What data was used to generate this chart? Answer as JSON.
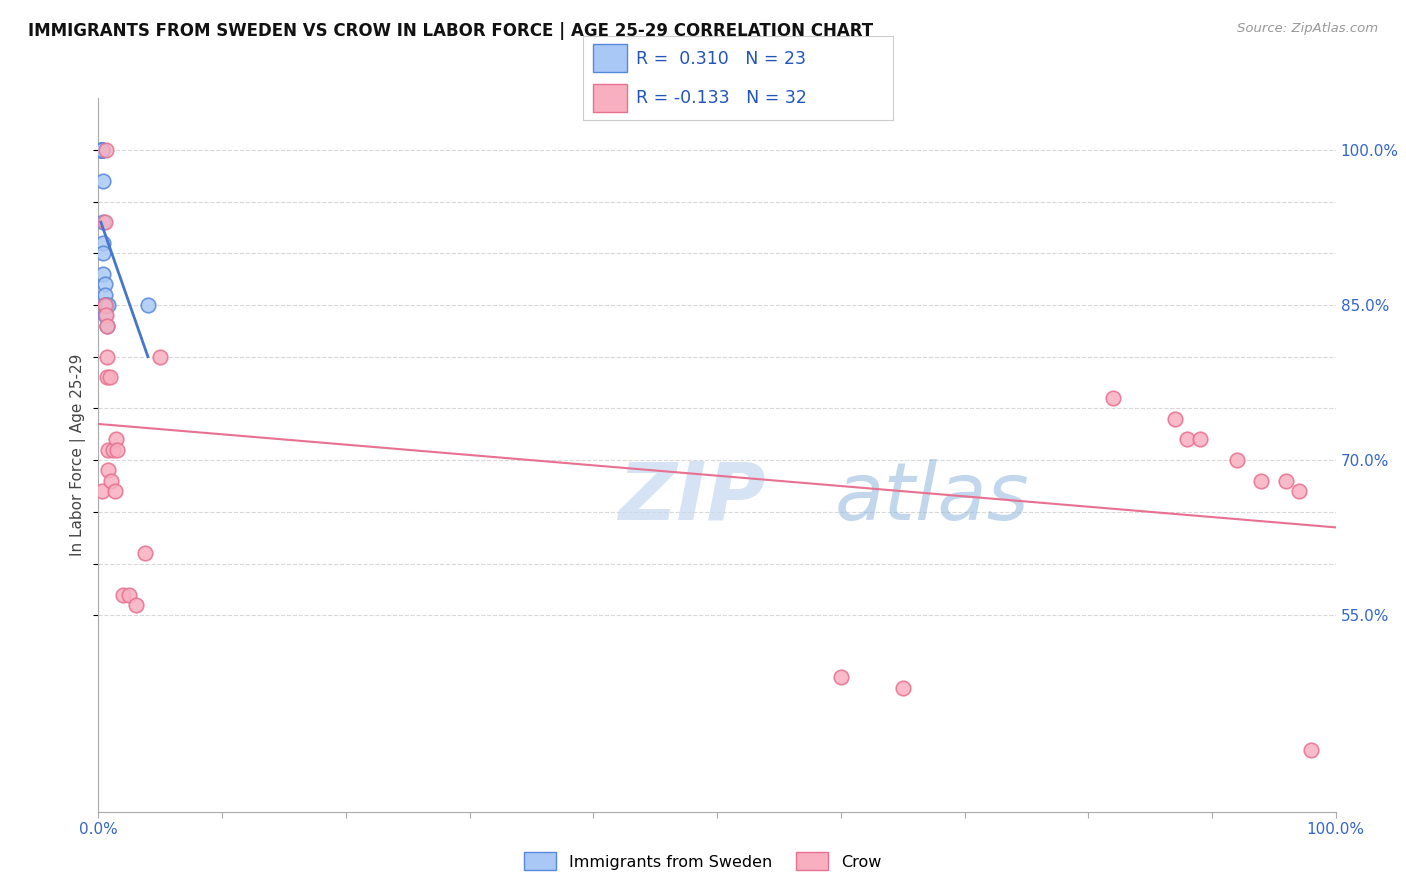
{
  "title": "IMMIGRANTS FROM SWEDEN VS CROW IN LABOR FORCE | AGE 25-29 CORRELATION CHART",
  "source": "Source: ZipAtlas.com",
  "ylabel": "In Labor Force | Age 25-29",
  "legend_label1": "Immigrants from Sweden",
  "legend_label2": "Crow",
  "R1": 0.31,
  "N1": 23,
  "R2": -0.133,
  "N2": 32,
  "xlim": [
    0.0,
    1.0
  ],
  "ylim": [
    0.36,
    1.05
  ],
  "ytick_positions": [
    0.55,
    0.6,
    0.65,
    0.7,
    0.75,
    0.8,
    0.85,
    0.9,
    0.95,
    1.0
  ],
  "ytick_labels": [
    "55.0%",
    "",
    "",
    "70.0%",
    "",
    "",
    "85.0%",
    "",
    "",
    "100.0%"
  ],
  "xtick_positions": [
    0.0,
    0.1,
    0.2,
    0.3,
    0.4,
    0.5,
    0.6,
    0.7,
    0.8,
    0.9,
    1.0
  ],
  "xtick_labels": [
    "0.0%",
    "",
    "",
    "",
    "",
    "",
    "",
    "",
    "",
    "",
    "100.0%"
  ],
  "color_blue_fill": "#aac8f5",
  "color_blue_edge": "#5588dd",
  "color_pink_fill": "#f8b0c0",
  "color_pink_edge": "#e87090",
  "color_blue_line": "#4477cc",
  "color_pink_line": "#e87090",
  "sweden_x": [
    0.002,
    0.002,
    0.003,
    0.003,
    0.003,
    0.003,
    0.003,
    0.003,
    0.004,
    0.004,
    0.004,
    0.004,
    0.004,
    0.005,
    0.005,
    0.005,
    0.005,
    0.005,
    0.006,
    0.006,
    0.007,
    0.008,
    0.04
  ],
  "sweden_y": [
    1.0,
    1.0,
    1.0,
    1.0,
    1.0,
    1.0,
    1.0,
    1.0,
    0.97,
    0.93,
    0.91,
    0.9,
    0.88,
    0.87,
    0.86,
    0.85,
    0.85,
    0.84,
    0.85,
    0.85,
    0.83,
    0.85,
    0.85
  ],
  "crow_x": [
    0.003,
    0.005,
    0.005,
    0.006,
    0.006,
    0.007,
    0.007,
    0.007,
    0.008,
    0.008,
    0.009,
    0.01,
    0.012,
    0.013,
    0.014,
    0.015,
    0.02,
    0.025,
    0.03,
    0.038,
    0.05,
    0.6,
    0.65,
    0.82,
    0.87,
    0.88,
    0.89,
    0.92,
    0.94,
    0.96,
    0.97,
    0.98
  ],
  "crow_y": [
    0.67,
    0.93,
    0.85,
    1.0,
    0.84,
    0.83,
    0.8,
    0.78,
    0.71,
    0.69,
    0.78,
    0.68,
    0.71,
    0.67,
    0.72,
    0.71,
    0.57,
    0.57,
    0.56,
    0.61,
    0.8,
    0.49,
    0.48,
    0.76,
    0.74,
    0.72,
    0.72,
    0.7,
    0.68,
    0.68,
    0.67,
    0.42
  ],
  "watermark_zip": "ZIP",
  "watermark_atlas": "atlas",
  "background_color": "#ffffff",
  "grid_color": "#d8d8d8"
}
